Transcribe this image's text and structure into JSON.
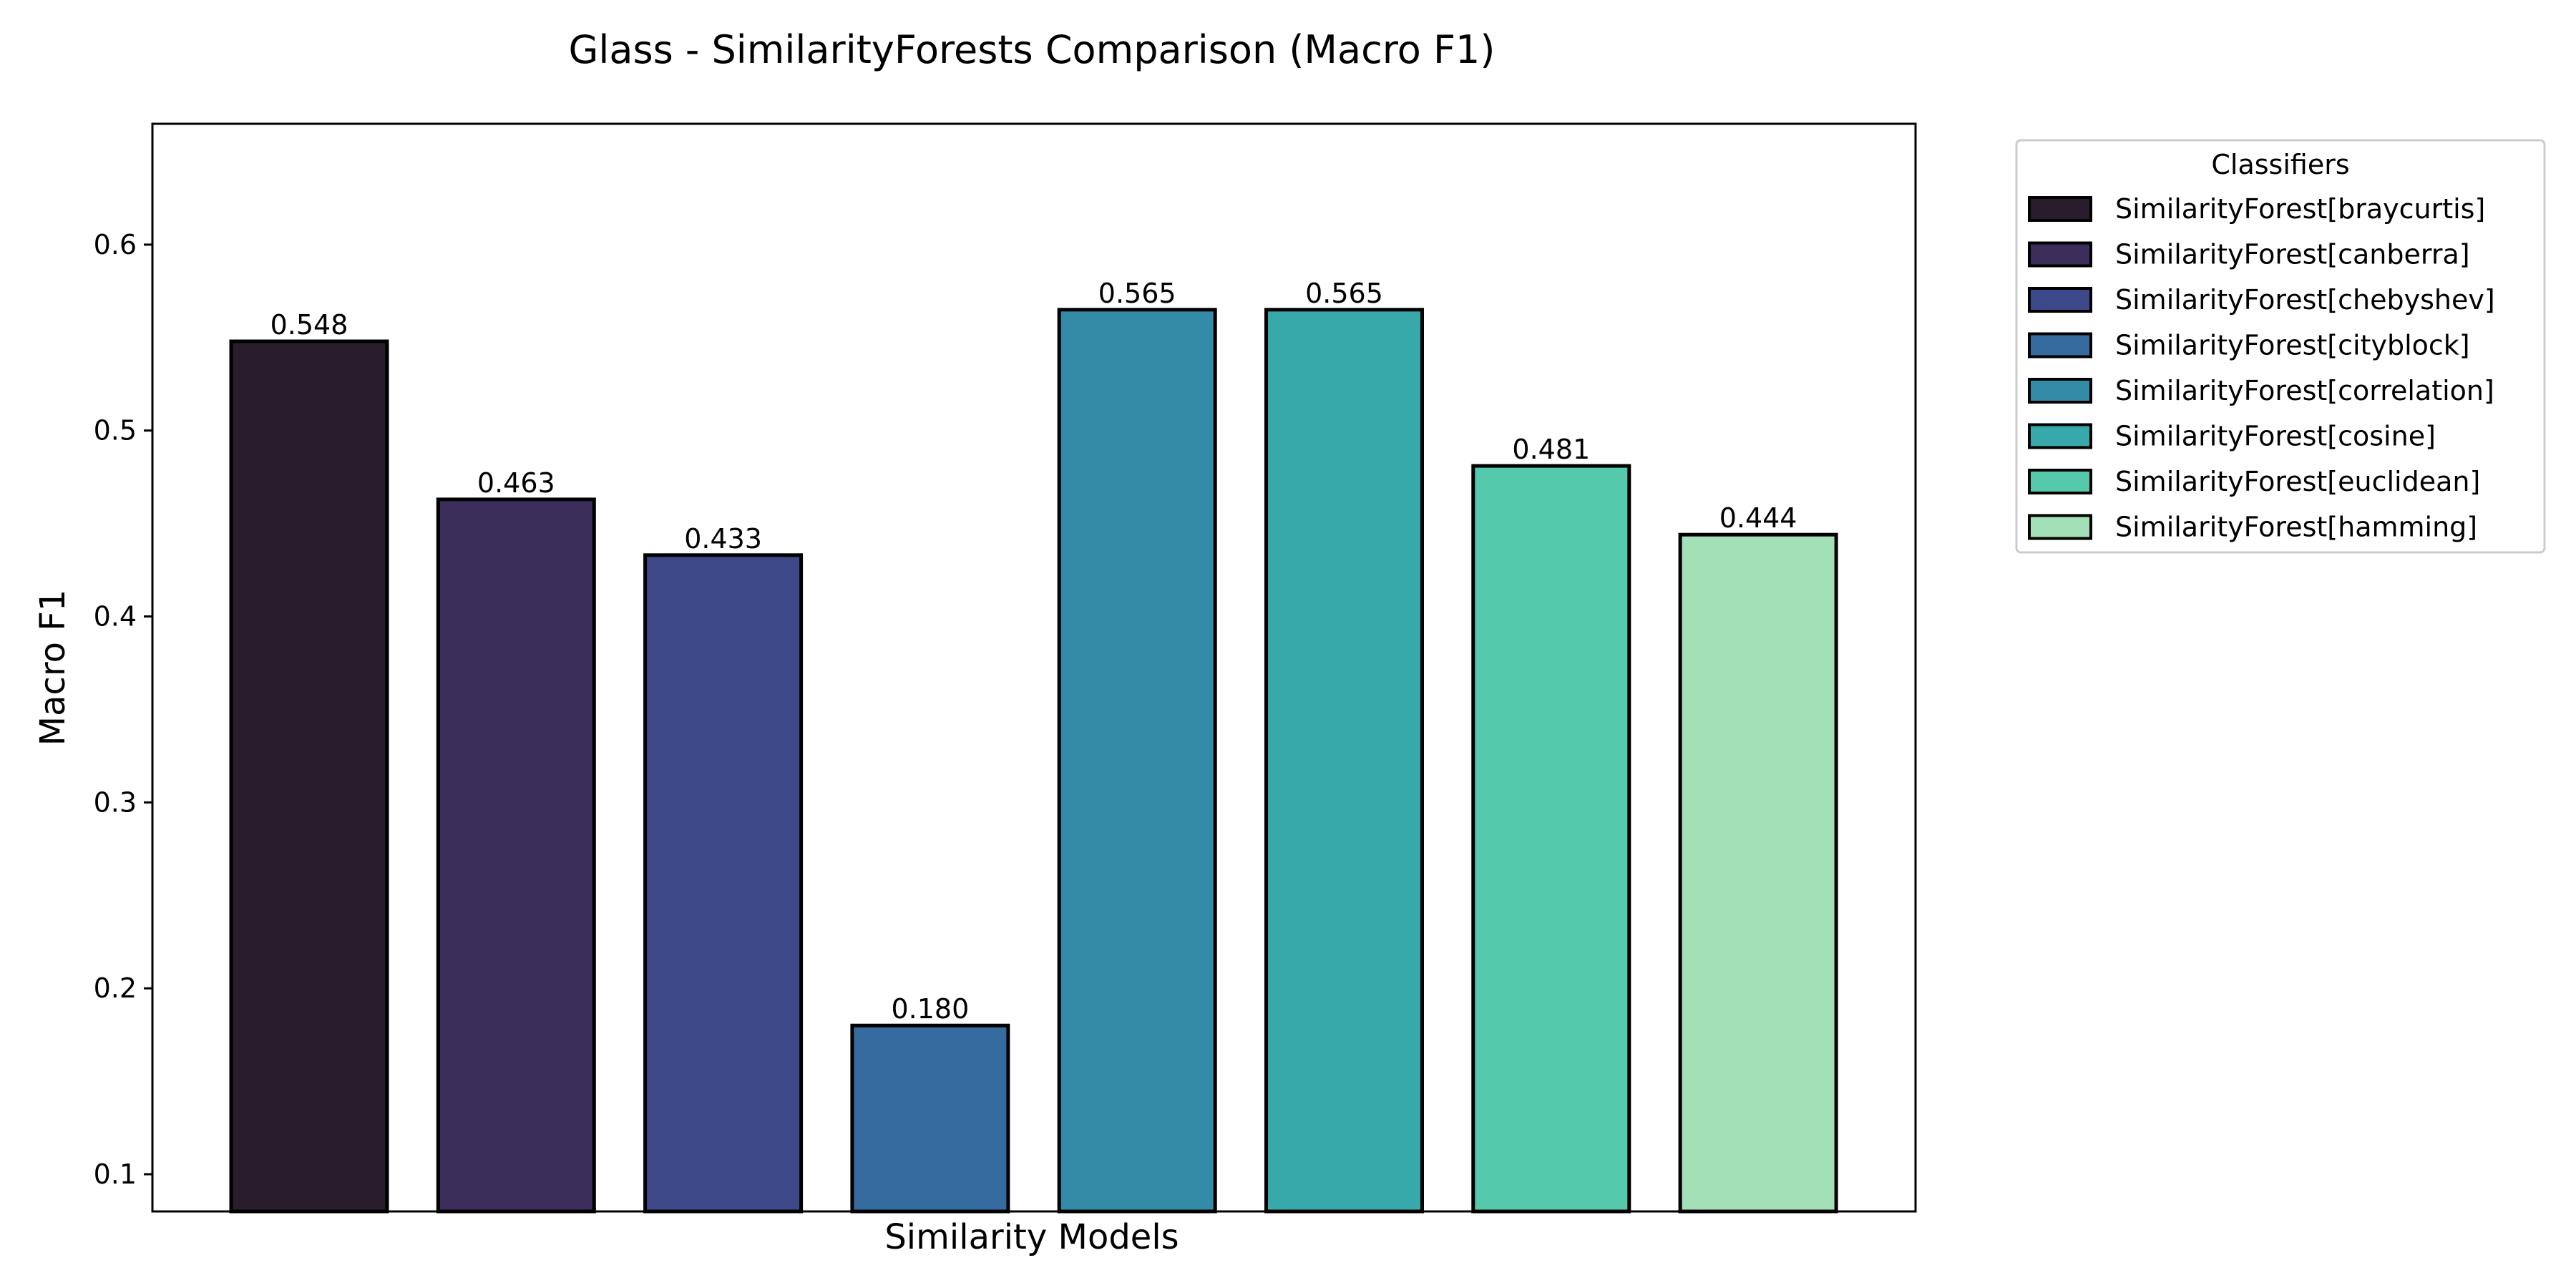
{
  "chart_data": {
    "type": "bar",
    "title": "Glass - SimilarityForests Comparison (Macro F1)",
    "xlabel": "Similarity Models",
    "ylabel": "Macro F1",
    "ylim": [
      0.08,
      0.665
    ],
    "yticks": [
      0.1,
      0.2,
      0.3,
      0.4,
      0.5,
      0.6
    ],
    "ytick_labels": [
      "0.1",
      "0.2",
      "0.3",
      "0.4",
      "0.5",
      "0.6"
    ],
    "categories": [
      "SimilarityForest[braycurtis]",
      "SimilarityForest[canberra]",
      "SimilarityForest[chebyshev]",
      "SimilarityForest[cityblock]",
      "SimilarityForest[correlation]",
      "SimilarityForest[cosine]",
      "SimilarityForest[euclidean]",
      "SimilarityForest[hamming]"
    ],
    "values": [
      0.548,
      0.463,
      0.433,
      0.18,
      0.565,
      0.565,
      0.481,
      0.444
    ],
    "value_labels": [
      "0.548",
      "0.463",
      "0.433",
      "0.180",
      "0.565",
      "0.565",
      "0.481",
      "0.444"
    ],
    "colors": [
      "#281c2d",
      "#3c2e5a",
      "#3e4989",
      "#366ba0",
      "#348ba7",
      "#38a9ab",
      "#55c9ac",
      "#a3dfb7"
    ],
    "legend": {
      "title": "Classifiers",
      "position": "outside-right-top"
    },
    "grid": false,
    "edgecolor": "#000000"
  }
}
